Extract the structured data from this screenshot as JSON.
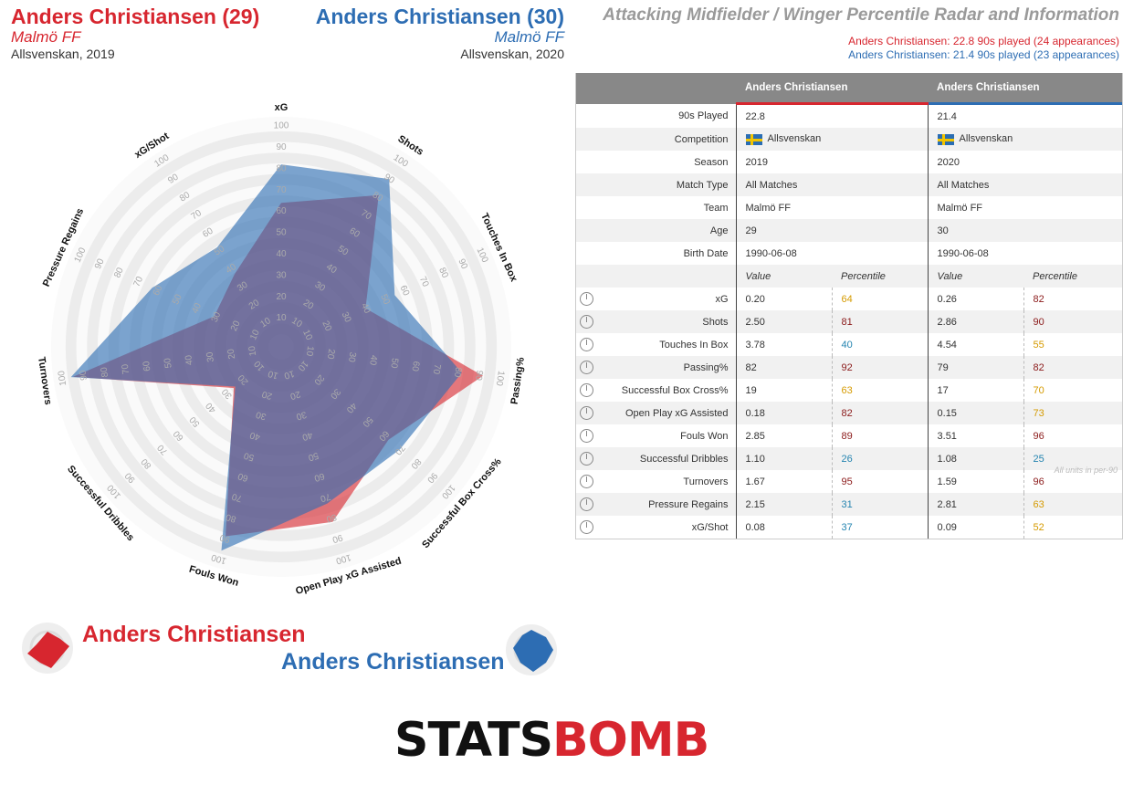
{
  "header": {
    "player1": {
      "name": "Anders Christiansen (29)",
      "team": "Malmö FF",
      "competition": "Allsvenskan, 2019"
    },
    "player2": {
      "name": "Anders Christiansen (30)",
      "team": "Malmö FF",
      "competition": "Allsvenskan, 2020"
    },
    "title": "Attacking Midfielder / Winger Percentile Radar and Information",
    "played1": "Anders Christiansen: 22.8 90s played (24 appearances)",
    "played2": "Anders Christiansen: 21.4 90s played (23 appearances)"
  },
  "colors": {
    "player1": "#d7262f",
    "player2": "#2d6db3",
    "pct_high": "#8b1a1a",
    "pct_mid": "#d59a00",
    "pct_low": "#2484b0"
  },
  "table": {
    "head1": "Anders Christiansen",
    "head2": "Anders Christiansen",
    "info_rows": [
      {
        "label": "90s Played",
        "v1": "22.8",
        "v2": "21.4"
      },
      {
        "label": "Competition",
        "v1": "Allsvenskan",
        "v2": "Allsvenskan",
        "flag": true
      },
      {
        "label": "Season",
        "v1": "2019",
        "v2": "2020"
      },
      {
        "label": "Match Type",
        "v1": "All Matches",
        "v2": "All Matches"
      },
      {
        "label": "Team",
        "v1": "Malmö FF",
        "v2": "Malmö FF"
      },
      {
        "label": "Age",
        "v1": "29",
        "v2": "30"
      },
      {
        "label": "Birth Date",
        "v1": "1990-06-08",
        "v2": "1990-06-08"
      }
    ],
    "col_value": "Value",
    "col_percentile": "Percentile",
    "metric_rows": [
      {
        "label": "xG",
        "v1": "0.20",
        "p1": "64",
        "v2": "0.26",
        "p2": "82"
      },
      {
        "label": "Shots",
        "v1": "2.50",
        "p1": "81",
        "v2": "2.86",
        "p2": "90"
      },
      {
        "label": "Touches In Box",
        "v1": "3.78",
        "p1": "40",
        "v2": "4.54",
        "p2": "55"
      },
      {
        "label": "Passing%",
        "v1": "82",
        "p1": "92",
        "v2": "79",
        "p2": "82"
      },
      {
        "label": "Successful Box Cross%",
        "v1": "19",
        "p1": "63",
        "v2": "17",
        "p2": "70"
      },
      {
        "label": "Open Play xG Assisted",
        "v1": "0.18",
        "p1": "82",
        "v2": "0.15",
        "p2": "73"
      },
      {
        "label": "Fouls Won",
        "v1": "2.85",
        "p1": "89",
        "v2": "3.51",
        "p2": "96"
      },
      {
        "label": "Successful Dribbles",
        "v1": "1.10",
        "p1": "26",
        "v2": "1.08",
        "p2": "25"
      },
      {
        "label": "Turnovers",
        "v1": "1.67",
        "p1": "95",
        "v2": "1.59",
        "p2": "96"
      },
      {
        "label": "Pressure Regains",
        "v1": "2.15",
        "p1": "31",
        "v2": "2.81",
        "p2": "63"
      },
      {
        "label": "xG/Shot",
        "v1": "0.08",
        "p1": "37",
        "v2": "0.09",
        "p2": "52"
      }
    ],
    "units_note": "All units in per-90"
  },
  "legend": {
    "player1": "Anders Christiansen",
    "player2": "Anders Christiansen"
  },
  "logo": {
    "part1": "STATS",
    "part2": "BOMB"
  },
  "chart_data": {
    "type": "radar",
    "axes": [
      "xG",
      "Shots",
      "Touches In Box",
      "Passing%",
      "Successful Box Cross%",
      "Open Play xG Assisted",
      "Fouls Won",
      "Successful Dribbles",
      "Turnovers",
      "Pressure Regains",
      "xG/Shot"
    ],
    "range": [
      0,
      100
    ],
    "tick_values": [
      10,
      20,
      30,
      40,
      50,
      60,
      70,
      80,
      90,
      100
    ],
    "series": [
      {
        "name": "Anders Christiansen",
        "values": [
          64,
          81,
          40,
          92,
          63,
          82,
          89,
          26,
          95,
          31,
          37
        ]
      },
      {
        "name": "Anders Christiansen",
        "values": [
          82,
          90,
          55,
          82,
          70,
          73,
          96,
          25,
          96,
          63,
          52
        ]
      }
    ]
  }
}
